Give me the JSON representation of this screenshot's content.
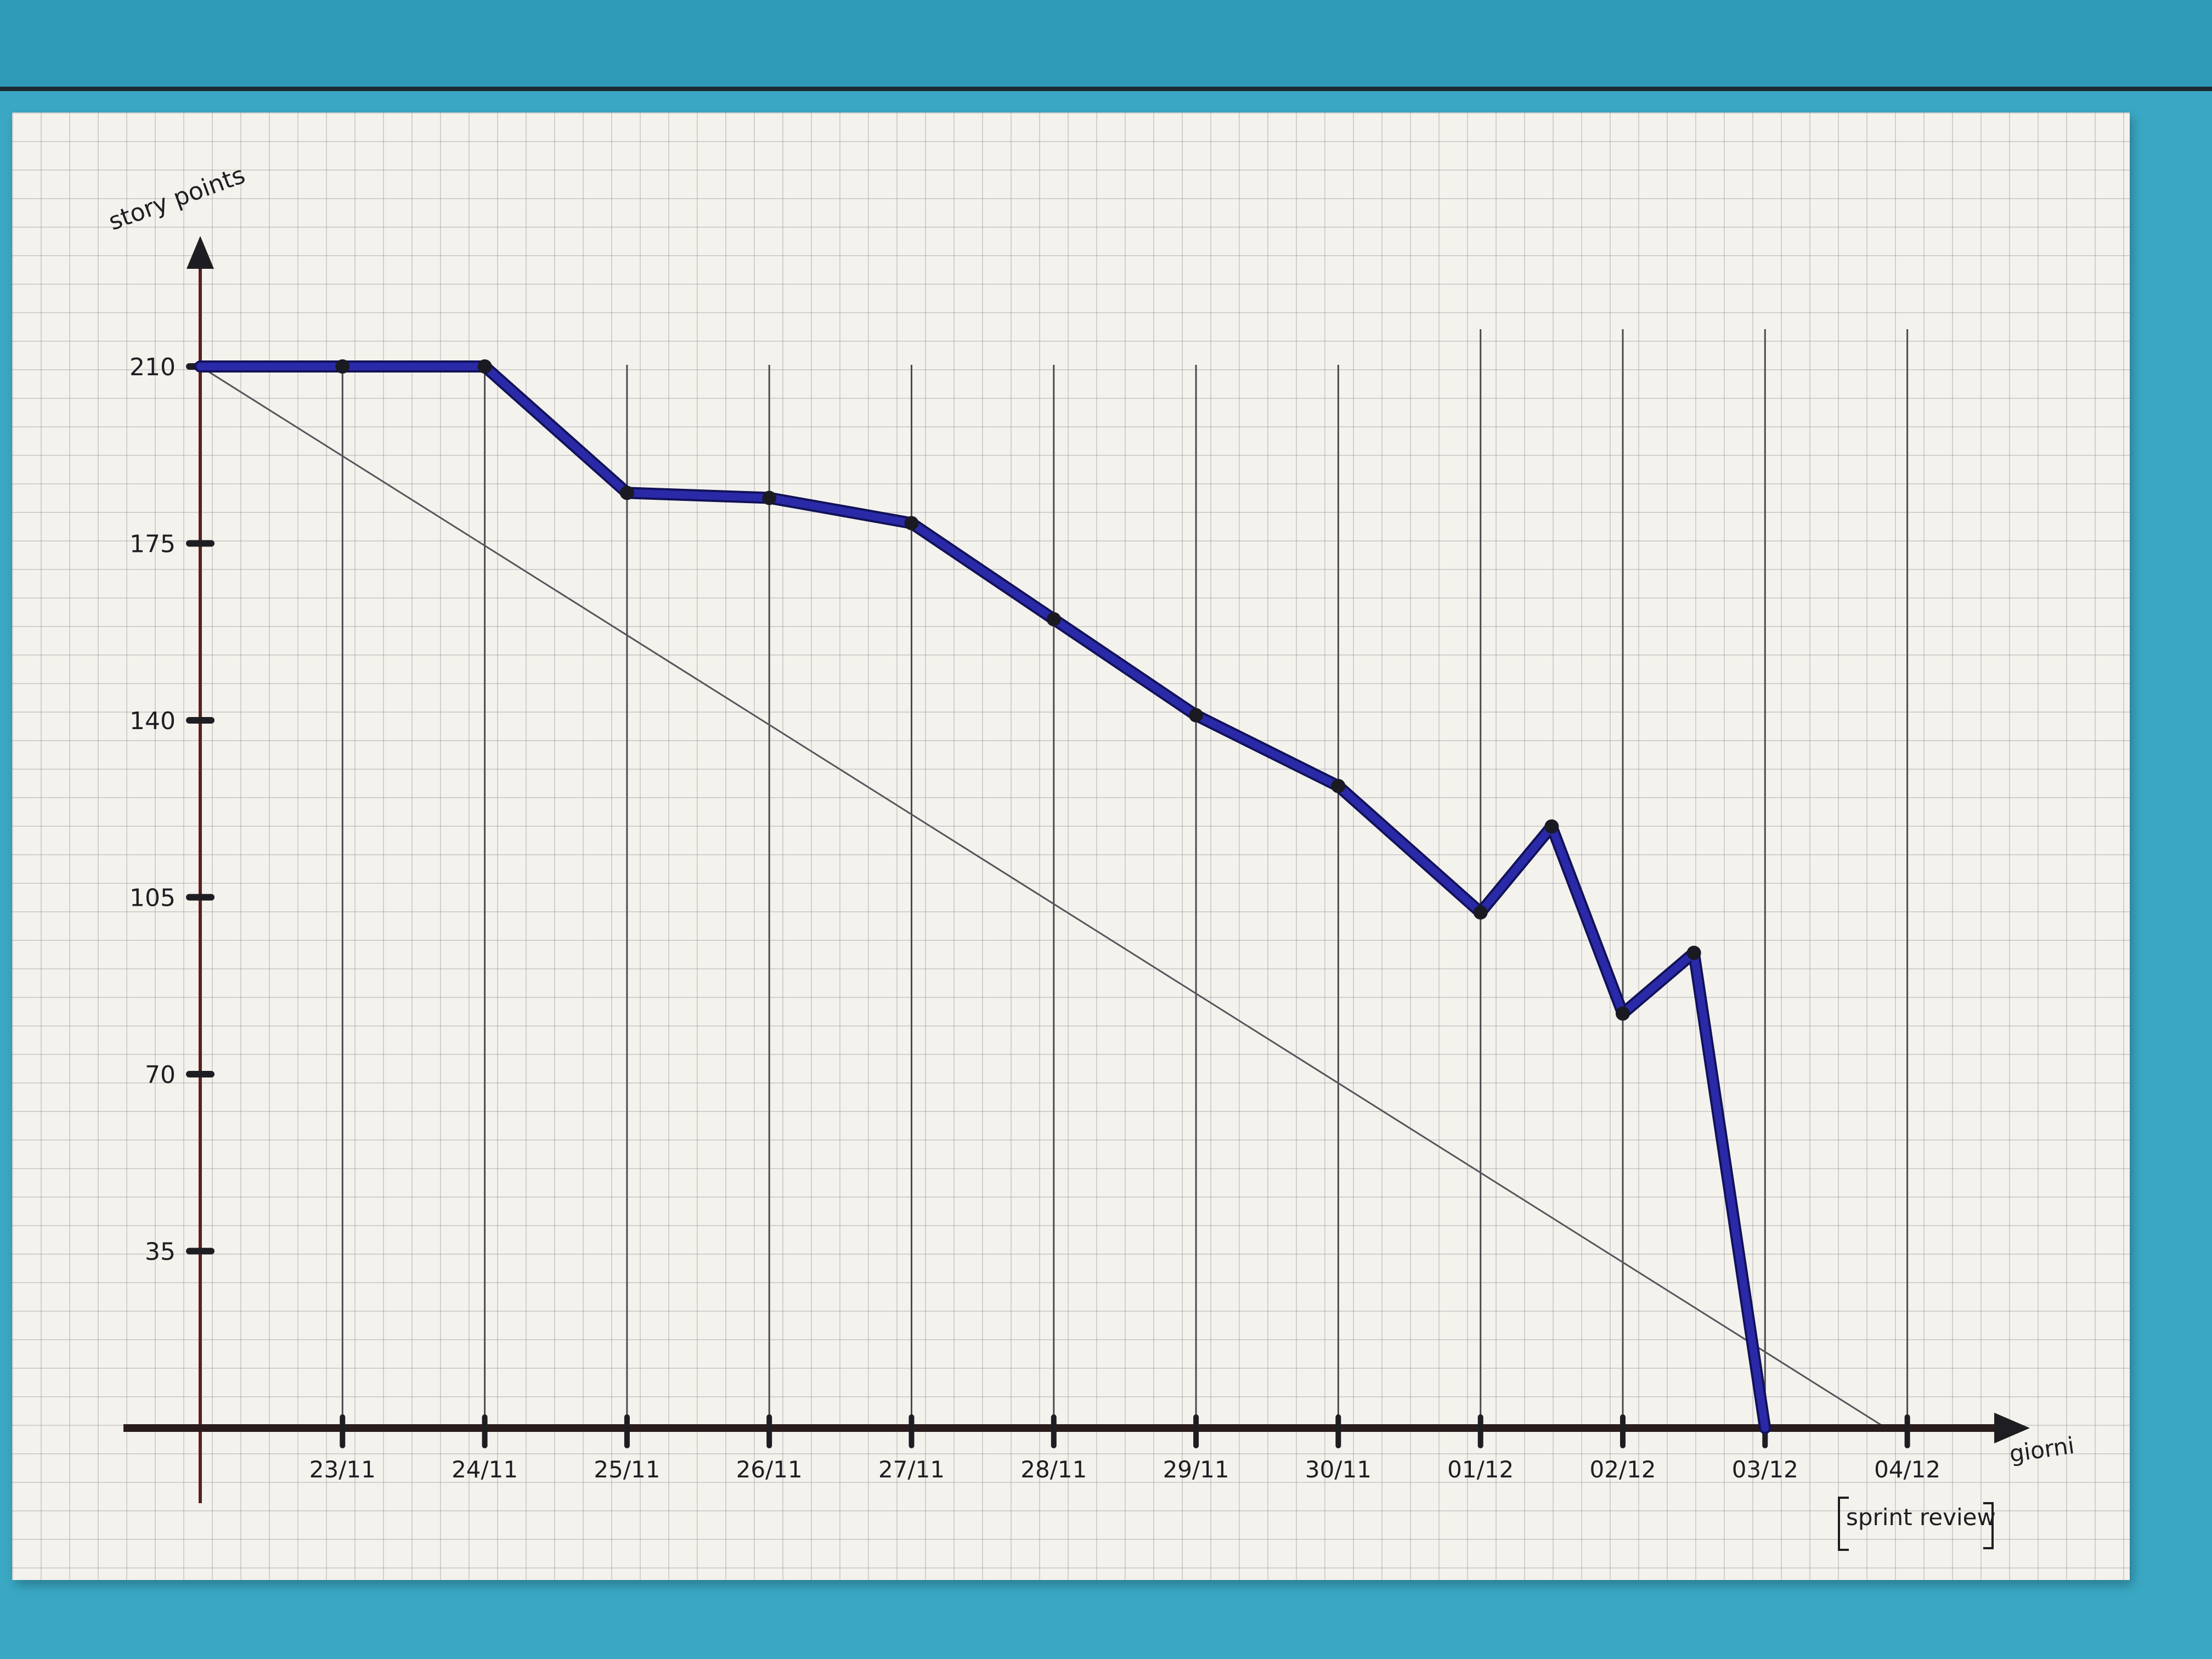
{
  "chart_data": {
    "type": "line",
    "title": "",
    "ylabel": "story points",
    "xlabel": "giorni",
    "x_origin_label": "",
    "categories": [
      "23/11",
      "24/11",
      "25/11",
      "26/11",
      "27/11",
      "28/11",
      "29/11",
      "30/11",
      "01/12",
      "02/12",
      "03/12",
      "04/12"
    ],
    "x_note": "sprint review",
    "yticks": [
      210,
      175,
      140,
      105,
      70,
      35
    ],
    "ylim": [
      0,
      210
    ],
    "grid": true,
    "series": [
      {
        "name": "",
        "color": "#2a2aa8",
        "points": [
          {
            "x": 0,
            "y": 210
          },
          {
            "x": 1,
            "y": 210
          },
          {
            "x": 2,
            "y": 210
          },
          {
            "x": 3,
            "y": 185
          },
          {
            "x": 4,
            "y": 184
          },
          {
            "x": 5,
            "y": 179
          },
          {
            "x": 6,
            "y": 160
          },
          {
            "x": 7,
            "y": 141
          },
          {
            "x": 8,
            "y": 127
          },
          {
            "x": 9,
            "y": 102
          },
          {
            "x": 9.5,
            "y": 119
          },
          {
            "x": 10,
            "y": 82
          },
          {
            "x": 10.5,
            "y": 94
          },
          {
            "x": 11,
            "y": 0
          }
        ]
      },
      {
        "name": "",
        "color": "#55555c",
        "points": [
          {
            "x": 0,
            "y": 210
          },
          {
            "x": 11.85,
            "y": 0
          }
        ]
      }
    ]
  }
}
